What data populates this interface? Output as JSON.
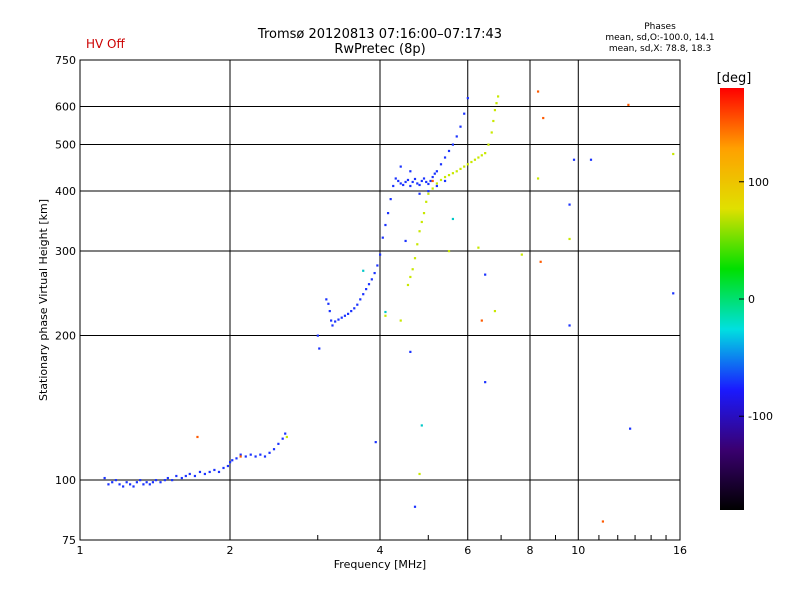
{
  "header": {
    "hv_status": "HV Off",
    "title_line1": "Tromsø 20120813 07:16:00–07:17:43",
    "title_line2": "RwPretec (8p)",
    "phases_title": "Phases",
    "phases_o": "mean, sd,O:-100.0, 14.1",
    "phases_x": "mean, sd,X:  78.8, 18.3"
  },
  "chart_data": {
    "type": "scatter",
    "xlabel": "Frequency [MHz]",
    "ylabel": "Stationary phase Virtual Height [km]",
    "x_scale": "log",
    "y_scale": "log",
    "xlim": [
      1,
      16
    ],
    "ylim": [
      75,
      750
    ],
    "x_ticks": [
      1,
      2,
      4,
      6,
      8,
      10,
      16
    ],
    "y_ticks": [
      75,
      100,
      200,
      300,
      400,
      500,
      600,
      750
    ],
    "grid": true,
    "colorbar": {
      "label": "[deg]",
      "range": [
        -180,
        180
      ],
      "ticks": [
        100,
        0,
        -100
      ],
      "colors": [
        "#000000",
        "#3a0070",
        "#1a1aff",
        "#00e0e0",
        "#00e000",
        "#e0e000",
        "#ffa000",
        "#ff0000"
      ]
    },
    "series": [
      {
        "color": "#1a32ff",
        "points": [
          [
            1.12,
            101
          ],
          [
            1.14,
            98
          ],
          [
            1.16,
            99
          ],
          [
            1.18,
            100
          ],
          [
            1.2,
            98
          ],
          [
            1.22,
            97
          ],
          [
            1.24,
            99
          ],
          [
            1.26,
            98
          ],
          [
            1.28,
            97
          ],
          [
            1.3,
            99
          ],
          [
            1.32,
            100
          ],
          [
            1.34,
            98
          ],
          [
            1.36,
            99
          ],
          [
            1.38,
            98
          ],
          [
            1.4,
            99
          ],
          [
            1.42,
            100
          ],
          [
            1.45,
            99
          ],
          [
            1.48,
            100
          ],
          [
            1.5,
            101
          ],
          [
            1.53,
            100
          ],
          [
            1.56,
            102
          ],
          [
            1.6,
            101
          ],
          [
            1.63,
            102
          ],
          [
            1.66,
            103
          ],
          [
            1.7,
            102
          ],
          [
            1.74,
            104
          ],
          [
            1.78,
            103
          ],
          [
            1.82,
            104
          ],
          [
            1.86,
            105
          ],
          [
            1.9,
            104
          ],
          [
            1.94,
            106
          ],
          [
            1.98,
            107
          ],
          [
            2.0,
            109
          ],
          [
            2.02,
            110
          ],
          [
            2.06,
            111
          ],
          [
            2.1,
            113
          ],
          [
            2.15,
            112
          ],
          [
            2.2,
            113
          ],
          [
            2.25,
            112
          ],
          [
            2.3,
            113
          ],
          [
            2.35,
            112
          ],
          [
            2.4,
            114
          ],
          [
            2.45,
            116
          ],
          [
            2.5,
            119
          ],
          [
            2.55,
            122
          ],
          [
            2.58,
            125
          ],
          [
            3.0,
            200
          ],
          [
            3.02,
            188
          ],
          [
            3.12,
            238
          ],
          [
            3.15,
            233
          ],
          [
            3.17,
            225
          ],
          [
            3.19,
            215
          ],
          [
            3.21,
            210
          ],
          [
            3.25,
            214
          ],
          [
            3.3,
            216
          ],
          [
            3.35,
            218
          ],
          [
            3.4,
            220
          ],
          [
            3.45,
            222
          ],
          [
            3.5,
            225
          ],
          [
            3.55,
            228
          ],
          [
            3.6,
            232
          ],
          [
            3.65,
            238
          ],
          [
            3.7,
            244
          ],
          [
            3.75,
            250
          ],
          [
            3.8,
            256
          ],
          [
            3.85,
            262
          ],
          [
            3.9,
            270
          ],
          [
            3.95,
            280
          ],
          [
            4.0,
            295
          ],
          [
            4.05,
            320
          ],
          [
            4.1,
            340
          ],
          [
            4.15,
            360
          ],
          [
            4.2,
            385
          ],
          [
            4.25,
            410
          ],
          [
            4.3,
            425
          ],
          [
            4.35,
            420
          ],
          [
            4.4,
            415
          ],
          [
            4.45,
            412
          ],
          [
            4.5,
            418
          ],
          [
            4.55,
            422
          ],
          [
            4.6,
            410
          ],
          [
            4.65,
            418
          ],
          [
            4.7,
            424
          ],
          [
            4.75,
            415
          ],
          [
            4.8,
            412
          ],
          [
            4.85,
            420
          ],
          [
            4.9,
            425
          ],
          [
            4.95,
            418
          ],
          [
            5.0,
            414
          ],
          [
            5.05,
            420
          ],
          [
            5.1,
            428
          ],
          [
            5.15,
            435
          ],
          [
            5.2,
            440
          ],
          [
            5.3,
            455
          ],
          [
            5.4,
            470
          ],
          [
            5.5,
            485
          ],
          [
            5.6,
            500
          ],
          [
            5.7,
            520
          ],
          [
            5.8,
            545
          ],
          [
            5.9,
            580
          ],
          [
            6.0,
            625
          ],
          [
            4.4,
            450
          ],
          [
            4.6,
            440
          ],
          [
            4.8,
            395
          ],
          [
            5.0,
            400
          ],
          [
            5.2,
            410
          ],
          [
            5.4,
            420
          ],
          [
            6.5,
            268
          ],
          [
            6.5,
            160
          ],
          [
            3.92,
            120
          ],
          [
            4.5,
            315
          ],
          [
            4.6,
            185
          ],
          [
            4.7,
            88
          ],
          [
            9.6,
            375
          ],
          [
            9.6,
            210
          ],
          [
            9.8,
            465
          ],
          [
            10.6,
            465
          ],
          [
            12.7,
            128
          ],
          [
            15.5,
            245
          ]
        ]
      },
      {
        "color": "#c8e800",
        "points": [
          [
            4.55,
            255
          ],
          [
            4.6,
            265
          ],
          [
            4.65,
            275
          ],
          [
            4.7,
            290
          ],
          [
            4.75,
            310
          ],
          [
            4.8,
            330
          ],
          [
            4.85,
            345
          ],
          [
            4.9,
            360
          ],
          [
            4.95,
            380
          ],
          [
            5.0,
            395
          ],
          [
            5.1,
            405
          ],
          [
            5.2,
            415
          ],
          [
            5.3,
            422
          ],
          [
            5.4,
            428
          ],
          [
            5.5,
            432
          ],
          [
            5.6,
            436
          ],
          [
            5.7,
            440
          ],
          [
            5.8,
            445
          ],
          [
            5.9,
            450
          ],
          [
            6.0,
            455
          ],
          [
            6.1,
            460
          ],
          [
            6.2,
            465
          ],
          [
            6.3,
            470
          ],
          [
            6.4,
            475
          ],
          [
            6.5,
            480
          ],
          [
            6.6,
            500
          ],
          [
            6.7,
            530
          ],
          [
            6.75,
            560
          ],
          [
            6.8,
            590
          ],
          [
            6.85,
            610
          ],
          [
            6.9,
            630
          ],
          [
            4.1,
            220
          ],
          [
            4.4,
            215
          ],
          [
            4.8,
            103
          ],
          [
            5.5,
            300
          ],
          [
            6.3,
            305
          ],
          [
            6.8,
            225
          ],
          [
            7.7,
            295
          ],
          [
            8.3,
            425
          ],
          [
            9.6,
            318
          ],
          [
            15.5,
            478
          ],
          [
            2.6,
            123
          ]
        ]
      },
      {
        "color": "#ff5a00",
        "points": [
          [
            1.72,
            123
          ],
          [
            2.1,
            112
          ],
          [
            5.1,
            420
          ],
          [
            6.4,
            215
          ],
          [
            8.3,
            645
          ],
          [
            8.5,
            568
          ],
          [
            8.4,
            285
          ],
          [
            11.2,
            82
          ],
          [
            12.6,
            605
          ]
        ]
      },
      {
        "color": "#00c8c8",
        "points": [
          [
            3.7,
            273
          ],
          [
            4.85,
            130
          ],
          [
            5.6,
            350
          ],
          [
            4.1,
            224
          ]
        ]
      }
    ]
  }
}
